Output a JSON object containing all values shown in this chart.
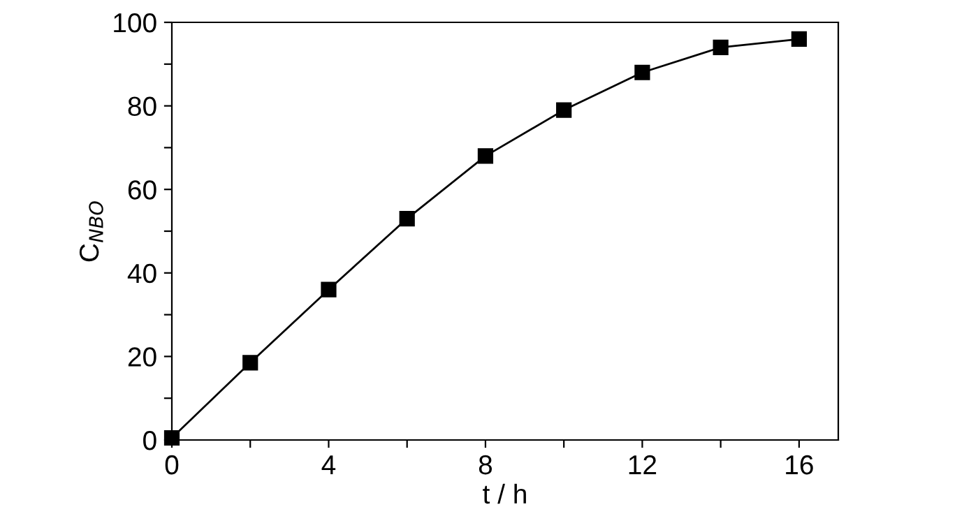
{
  "chart_data": {
    "type": "line",
    "xlabel": "t / h",
    "ylabel": "C$_{NBO}$",
    "x": [
      0,
      2,
      4,
      6,
      8,
      10,
      12,
      14,
      16
    ],
    "series": [
      {
        "color": "#000000",
        "values": [
          0.5,
          18.5,
          36,
          53,
          68,
          79,
          88,
          94,
          96
        ]
      }
    ],
    "marker": "square",
    "line_style": "solid",
    "xlim": [
      0,
      17
    ],
    "ylim": [
      0,
      100
    ],
    "xticks": [
      0,
      {
        "value": 2,
        "label": null
      },
      4,
      {
        "value": 6,
        "label": null
      },
      8,
      {
        "value": 10,
        "label": null
      },
      12,
      {
        "value": 14,
        "label": null
      },
      16
    ],
    "yticks": [
      0,
      {
        "value": 10,
        "label": null
      },
      20,
      {
        "value": 30,
        "label": null
      },
      40,
      {
        "value": 50,
        "label": null
      },
      60,
      {
        "value": 70,
        "label": null
      },
      80,
      {
        "value": 90,
        "label": null
      },
      100
    ],
    "grid": false,
    "legend": false
  }
}
